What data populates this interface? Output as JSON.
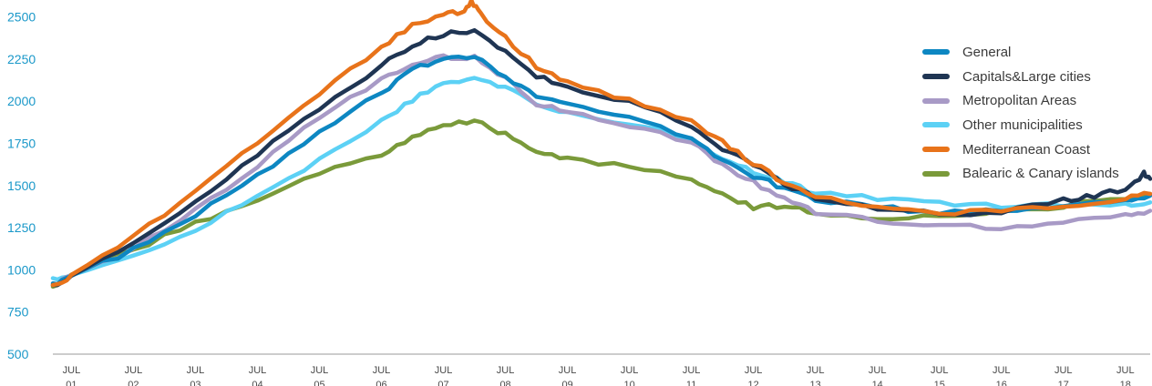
{
  "chart_data": {
    "type": "line",
    "title": "",
    "xlabel": "",
    "ylabel": "",
    "ylim": [
      500,
      2600
    ],
    "y_ticks": [
      "500",
      "750",
      "1000",
      "1250",
      "1500",
      "1750",
      "2000",
      "2250",
      "2500"
    ],
    "x_ticks": [
      {
        "top": "JUL",
        "bottom": "01"
      },
      {
        "top": "JUL",
        "bottom": "02"
      },
      {
        "top": "JUL",
        "bottom": "03"
      },
      {
        "top": "JUL",
        "bottom": "04"
      },
      {
        "top": "JUL",
        "bottom": "05"
      },
      {
        "top": "JUL",
        "bottom": "06"
      },
      {
        "top": "JUL",
        "bottom": "07"
      },
      {
        "top": "JUL",
        "bottom": "08"
      },
      {
        "top": "JUL",
        "bottom": "09"
      },
      {
        "top": "JUL",
        "bottom": "10"
      },
      {
        "top": "JUL",
        "bottom": "11"
      },
      {
        "top": "JUL",
        "bottom": "12"
      },
      {
        "top": "JUL",
        "bottom": "13"
      },
      {
        "top": "JUL",
        "bottom": "14"
      },
      {
        "top": "JUL",
        "bottom": "15"
      },
      {
        "top": "JUL",
        "bottom": "16"
      },
      {
        "top": "JUL",
        "bottom": "17"
      },
      {
        "top": "JUL",
        "bottom": "18"
      }
    ],
    "x_start": 2000.7,
    "x_end": 2018.4,
    "x_first_tick": 2001,
    "grid": false,
    "legend_position": "top-right",
    "series": [
      {
        "name": "General",
        "color": "#0d87c2",
        "points": [
          [
            2000.7,
            920
          ],
          [
            2001,
            960
          ],
          [
            2002,
            1120
          ],
          [
            2003,
            1320
          ],
          [
            2004,
            1560
          ],
          [
            2005,
            1810
          ],
          [
            2006,
            2050
          ],
          [
            2006.5,
            2180
          ],
          [
            2007,
            2260
          ],
          [
            2007.5,
            2270
          ],
          [
            2008,
            2150
          ],
          [
            2008.5,
            2030
          ],
          [
            2009,
            1980
          ],
          [
            2010,
            1900
          ],
          [
            2011,
            1780
          ],
          [
            2011.5,
            1650
          ],
          [
            2012,
            1560
          ],
          [
            2012.5,
            1480
          ],
          [
            2013,
            1420
          ],
          [
            2014,
            1370
          ],
          [
            2015,
            1340
          ],
          [
            2016,
            1350
          ],
          [
            2017,
            1380
          ],
          [
            2018,
            1420
          ],
          [
            2018.4,
            1440
          ]
        ]
      },
      {
        "name": "Capitals&Large cities",
        "color": "#1f3553",
        "points": [
          [
            2000.7,
            910
          ],
          [
            2001,
            960
          ],
          [
            2002,
            1150
          ],
          [
            2003,
            1400
          ],
          [
            2004,
            1680
          ],
          [
            2005,
            1960
          ],
          [
            2006,
            2210
          ],
          [
            2006.5,
            2330
          ],
          [
            2007,
            2400
          ],
          [
            2007.5,
            2420
          ],
          [
            2008,
            2300
          ],
          [
            2008.5,
            2150
          ],
          [
            2009,
            2080
          ],
          [
            2010,
            1990
          ],
          [
            2011,
            1860
          ],
          [
            2011.5,
            1720
          ],
          [
            2012,
            1620
          ],
          [
            2012.5,
            1510
          ],
          [
            2013,
            1430
          ],
          [
            2014,
            1360
          ],
          [
            2015,
            1330
          ],
          [
            2016,
            1340
          ],
          [
            2017,
            1410
          ],
          [
            2017.5,
            1440
          ],
          [
            2018,
            1480
          ],
          [
            2018.3,
            1570
          ],
          [
            2018.4,
            1540
          ]
        ]
      },
      {
        "name": "Metropolitan Areas",
        "color": "#a89ac6",
        "points": [
          [
            2000.7,
            910
          ],
          [
            2001,
            960
          ],
          [
            2002,
            1120
          ],
          [
            2003,
            1350
          ],
          [
            2004,
            1620
          ],
          [
            2005,
            1900
          ],
          [
            2006,
            2130
          ],
          [
            2006.5,
            2210
          ],
          [
            2007,
            2260
          ],
          [
            2007.5,
            2260
          ],
          [
            2008,
            2140
          ],
          [
            2008.5,
            1990
          ],
          [
            2009,
            1930
          ],
          [
            2010,
            1860
          ],
          [
            2011,
            1750
          ],
          [
            2011.5,
            1620
          ],
          [
            2012,
            1520
          ],
          [
            2012.5,
            1420
          ],
          [
            2013,
            1340
          ],
          [
            2014,
            1290
          ],
          [
            2015,
            1260
          ],
          [
            2016,
            1250
          ],
          [
            2017,
            1280
          ],
          [
            2018,
            1320
          ],
          [
            2018.4,
            1350
          ]
        ]
      },
      {
        "name": "Other municipalities",
        "color": "#5cd1f5",
        "points": [
          [
            2000.7,
            950
          ],
          [
            2001,
            960
          ],
          [
            2002,
            1080
          ],
          [
            2003,
            1240
          ],
          [
            2004,
            1430
          ],
          [
            2005,
            1650
          ],
          [
            2006,
            1880
          ],
          [
            2006.5,
            2010
          ],
          [
            2007,
            2100
          ],
          [
            2007.5,
            2150
          ],
          [
            2008,
            2080
          ],
          [
            2008.5,
            1970
          ],
          [
            2009,
            1930
          ],
          [
            2010,
            1870
          ],
          [
            2011,
            1770
          ],
          [
            2011.5,
            1660
          ],
          [
            2012,
            1580
          ],
          [
            2012.5,
            1520
          ],
          [
            2013,
            1460
          ],
          [
            2014,
            1420
          ],
          [
            2015,
            1390
          ],
          [
            2016,
            1380
          ],
          [
            2017,
            1390
          ],
          [
            2018,
            1390
          ],
          [
            2018.4,
            1400
          ]
        ]
      },
      {
        "name": "Mediterranean Coast",
        "color": "#e8731a",
        "points": [
          [
            2000.7,
            910
          ],
          [
            2001,
            960
          ],
          [
            2002,
            1200
          ],
          [
            2003,
            1470
          ],
          [
            2004,
            1750
          ],
          [
            2005,
            2050
          ],
          [
            2006,
            2310
          ],
          [
            2006.5,
            2460
          ],
          [
            2007,
            2510
          ],
          [
            2007.3,
            2530
          ],
          [
            2007.45,
            2590
          ],
          [
            2007.6,
            2520
          ],
          [
            2008,
            2380
          ],
          [
            2008.5,
            2200
          ],
          [
            2009,
            2110
          ],
          [
            2010,
            2000
          ],
          [
            2011,
            1880
          ],
          [
            2011.5,
            1760
          ],
          [
            2012,
            1630
          ],
          [
            2012.5,
            1520
          ],
          [
            2013,
            1440
          ],
          [
            2014,
            1360
          ],
          [
            2015,
            1330
          ],
          [
            2016,
            1350
          ],
          [
            2017,
            1380
          ],
          [
            2018,
            1420
          ],
          [
            2018.4,
            1450
          ]
        ]
      },
      {
        "name": "Balearic & Canary islands",
        "color": "#7a9a3a",
        "points": [
          [
            2000.7,
            900
          ],
          [
            2001,
            960
          ],
          [
            2002,
            1120
          ],
          [
            2003,
            1280
          ],
          [
            2004,
            1420
          ],
          [
            2005,
            1570
          ],
          [
            2006,
            1690
          ],
          [
            2006.5,
            1780
          ],
          [
            2007,
            1860
          ],
          [
            2007.5,
            1880
          ],
          [
            2008,
            1800
          ],
          [
            2008.5,
            1700
          ],
          [
            2009,
            1660
          ],
          [
            2010,
            1610
          ],
          [
            2011,
            1540
          ],
          [
            2011.5,
            1450
          ],
          [
            2012,
            1370
          ],
          [
            2012.5,
            1380
          ],
          [
            2013,
            1340
          ],
          [
            2014,
            1310
          ],
          [
            2015,
            1320
          ],
          [
            2016,
            1350
          ],
          [
            2017,
            1380
          ],
          [
            2018,
            1430
          ],
          [
            2018.4,
            1450
          ]
        ]
      }
    ]
  }
}
